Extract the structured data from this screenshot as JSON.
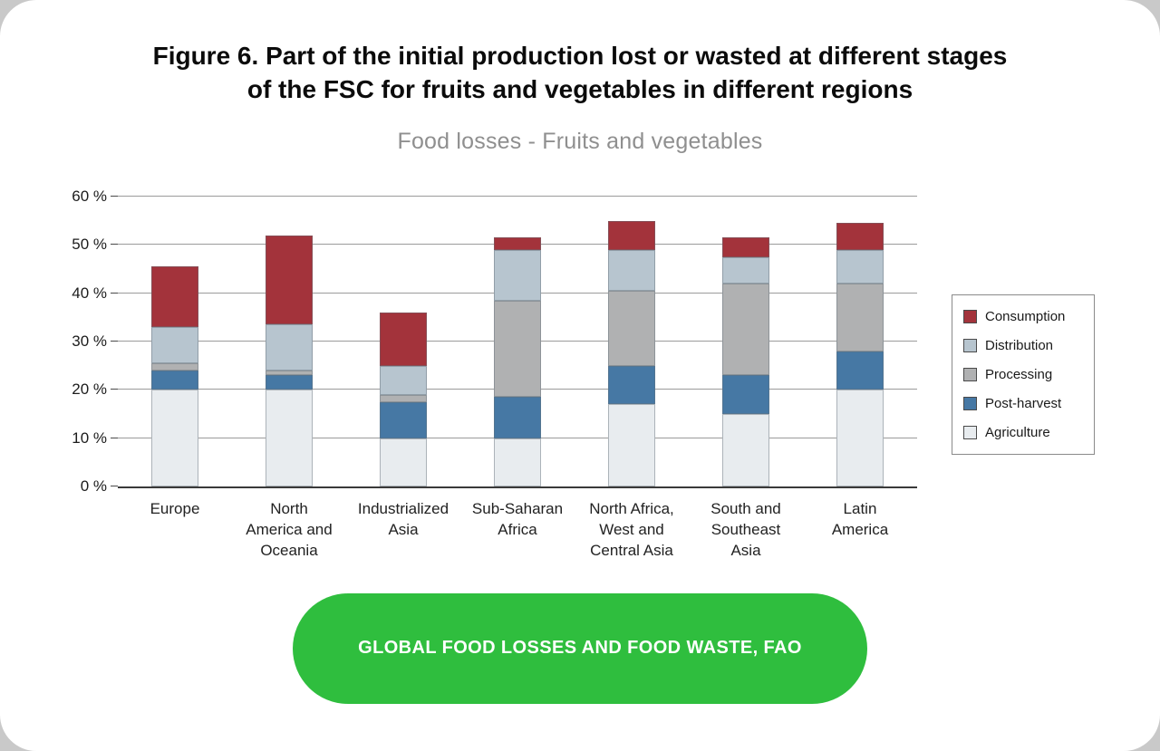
{
  "page": {
    "title_line1": "Figure 6. Part of the initial production lost or wasted at different stages",
    "title_line2": "of the FSC for fruits and vegetables in different regions",
    "subtitle": "Food losses - Fruits and vegetables",
    "footer_button": "GLOBAL FOOD LOSSES AND FOOD WASTE, FAO"
  },
  "colors": {
    "button_green": "#2fbe3e",
    "gridline": "#9b9b9b",
    "axis": "#3a3a3a",
    "title_text": "#0b0b0b",
    "subtitle_text": "#8f8f8f"
  },
  "chart_data": {
    "type": "bar",
    "stacked": true,
    "title": "Food losses - Fruits and vegetables",
    "xlabel": "",
    "ylabel": "",
    "ylim": [
      0,
      60
    ],
    "ytick_step": 10,
    "ytick_labels": [
      "0 %",
      "10 %",
      "20 %",
      "30 %",
      "40 %",
      "50 %",
      "60 %"
    ],
    "grid": true,
    "legend_position": "right",
    "categories": [
      "Europe",
      "North America and Oceania",
      "Industrialized Asia",
      "Sub-Saharan Africa",
      "North Africa, West and Central Asia",
      "South and Southeast Asia",
      "Latin America"
    ],
    "category_lines": [
      [
        "Europe"
      ],
      [
        "North",
        "America and",
        "Oceania"
      ],
      [
        "Industrialized",
        "Asia"
      ],
      [
        "Sub-Saharan",
        "Africa"
      ],
      [
        "North Africa,",
        "West and",
        "Central Asia"
      ],
      [
        "South and",
        "Southeast",
        "Asia"
      ],
      [
        "Latin",
        "America"
      ]
    ],
    "series": [
      {
        "name": "Agriculture",
        "color": "#e8ecef",
        "values": [
          20,
          20,
          10,
          10,
          17,
          15,
          20
        ]
      },
      {
        "name": "Post-harvest",
        "color": "#4678a4",
        "values": [
          4,
          3,
          7.5,
          8.5,
          8,
          8,
          8
        ]
      },
      {
        "name": "Processing",
        "color": "#b0b1b2",
        "values": [
          1.5,
          1,
          1.5,
          20,
          15.5,
          19,
          14
        ]
      },
      {
        "name": "Distribution",
        "color": "#b7c5cf",
        "values": [
          7.5,
          9.5,
          6,
          10.5,
          8.5,
          5.5,
          7
        ]
      },
      {
        "name": "Consumption",
        "color": "#a3333b",
        "values": [
          12.5,
          18.5,
          11,
          2.5,
          6,
          4,
          5.5
        ]
      }
    ],
    "totals": [
      45.5,
      52,
      36,
      51.5,
      55,
      51.5,
      54.5
    ],
    "legend": [
      "Consumption",
      "Distribution",
      "Processing",
      "Post-harvest",
      "Agriculture"
    ]
  }
}
